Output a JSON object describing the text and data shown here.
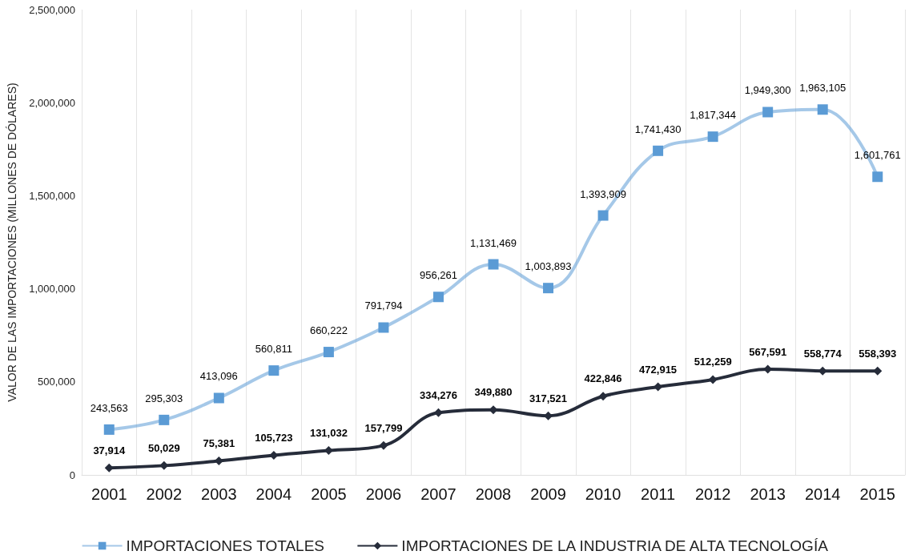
{
  "chart_data": {
    "type": "line",
    "ylabel": "VALOR DE LAS IMPORTACIONES (MILLONES DE DÓLARES)",
    "categories": [
      "2001",
      "2002",
      "2003",
      "2004",
      "2005",
      "2006",
      "2007",
      "2008",
      "2009",
      "2010",
      "2011",
      "2012",
      "2013",
      "2014",
      "2015"
    ],
    "series": [
      {
        "name": "IMPORTACIONES TOTALES",
        "color": "#5b9bd5",
        "marker": "square",
        "values": [
          243563,
          295303,
          413096,
          560811,
          660222,
          791794,
          956261,
          1131469,
          1003893,
          1393909,
          1741430,
          1817344,
          1949300,
          1963105,
          1601761
        ],
        "value_labels": [
          "243,563",
          "295,303",
          "413,096",
          "560,811",
          "660,222",
          "791,794",
          "956,261",
          "1,131,469",
          "1,003,893",
          "1,393,909",
          "1,741,430",
          "1,817,344",
          "1,949,300",
          "1,963,105",
          "1,601,761"
        ]
      },
      {
        "name": "IMPORTACIONES DE LA INDUSTRIA DE ALTA TECNOLOGÍA",
        "color": "#262c3a",
        "marker": "diamond",
        "values": [
          37914,
          50029,
          75381,
          105723,
          131032,
          157799,
          334276,
          349880,
          317521,
          422846,
          472915,
          512259,
          567591,
          558774,
          558393
        ],
        "value_labels": [
          "37,914",
          "50,029",
          "75,381",
          "105,723",
          "131,032",
          "157,799",
          "334,276",
          "349,880",
          "317,521",
          "422,846",
          "472,915",
          "512,259",
          "567,591",
          "558,774",
          "558,393"
        ]
      }
    ],
    "ylim": [
      0,
      2500000
    ],
    "yticks": [
      0,
      {
        "value": 500000,
        "label": "500,000"
      },
      {
        "value": 1000000,
        "label": "1,000,000"
      },
      {
        "value": 1500000,
        "label": "1,500,000"
      },
      {
        "value": 2000000,
        "label": "2,000,000"
      },
      {
        "value": 2500000,
        "label": "2,500,000"
      }
    ],
    "grid": "x",
    "legend": "bottom"
  }
}
